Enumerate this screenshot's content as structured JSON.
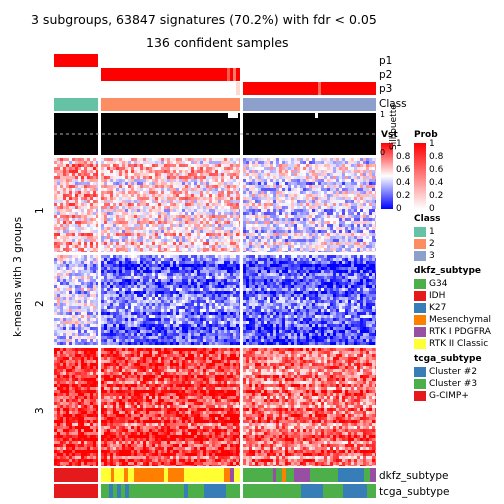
{
  "title": "3 subgroups, 63847 signatures (70.2%) with fdr < 0.05",
  "subtitle": "136 confident samples",
  "y_axis_label": "k-means with 3 groups",
  "row_tracks": [
    "p1",
    "p2",
    "p3",
    "Class"
  ],
  "bottom_tracks": [
    "dkfz_subtype",
    "tcga_subtype"
  ],
  "cluster_labels": [
    "1",
    "2",
    "3"
  ],
  "silhouette_label": "Silhouette",
  "silhouette_ticks": [
    "1",
    "0"
  ],
  "legends": {
    "vst": {
      "title": "Vst",
      "ticks": [
        "1",
        "0.8",
        "0.6",
        "0.4",
        "0.2",
        "0"
      ],
      "colors": [
        "#ff0000",
        "#ffffff",
        "#0000ff"
      ]
    },
    "prob": {
      "title": "Prob",
      "ticks": [
        "1",
        "0.8",
        "0.6",
        "0.4",
        "0.2",
        "0"
      ],
      "colors": [
        "#ff0000",
        "#ffffff"
      ]
    },
    "class": {
      "title": "Class",
      "items": [
        {
          "label": "1",
          "color": "#66C2A5"
        },
        {
          "label": "2",
          "color": "#FC8D62"
        },
        {
          "label": "3",
          "color": "#8DA0CB"
        }
      ]
    },
    "dkfz": {
      "title": "dkfz_subtype",
      "items": [
        {
          "label": "G34",
          "color": "#4DAF4A"
        },
        {
          "label": "IDH",
          "color": "#E41A1C"
        },
        {
          "label": "K27",
          "color": "#377EB8"
        },
        {
          "label": "Mesenchymal",
          "color": "#FF7F00"
        },
        {
          "label": "RTK I PDGFRA",
          "color": "#984EA3"
        },
        {
          "label": "RTK II Classic",
          "color": "#FFFF33"
        }
      ]
    },
    "tcga": {
      "title": "tcga_subtype",
      "items": [
        {
          "label": "Cluster #2",
          "color": "#377EB8"
        },
        {
          "label": "Cluster #3",
          "color": "#4DAF4A"
        },
        {
          "label": "G-CIMP+",
          "color": "#E41A1C"
        }
      ]
    }
  }
}
